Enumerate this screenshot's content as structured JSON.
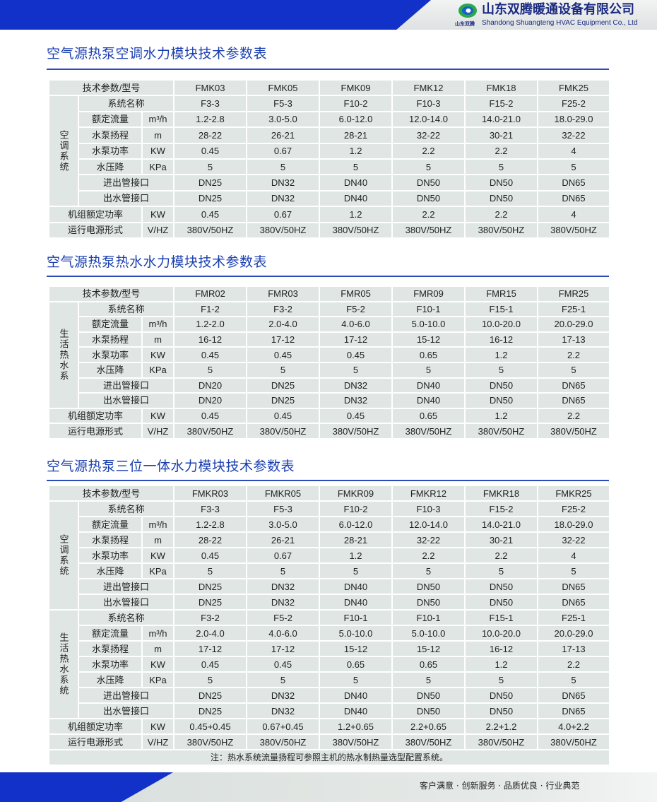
{
  "header": {
    "company_cn": "山东双腾暖通设备有限公司",
    "company_en": "Shandong Shuangteng HVAC Equipment Co., Ltd",
    "logo_text": "山东双腾",
    "brand_color": "#1231c8"
  },
  "tables": [
    {
      "title": "空气源热泵空调水力模块技术参数表",
      "header_label": "技术参数/型号",
      "models": [
        "FMK03",
        "FMK05",
        "FMK09",
        "FMK12",
        "FMK18",
        "FMK25"
      ],
      "groups": [
        {
          "label": "空调系统",
          "rows": [
            {
              "label": "系统名称",
              "unit": "",
              "values": [
                "F3-3",
                "F5-3",
                "F10-2",
                "F10-3",
                "F15-2",
                "F25-2"
              ]
            },
            {
              "label": "额定流量",
              "unit": "m³/h",
              "values": [
                "1.2-2.8",
                "3.0-5.0",
                "6.0-12.0",
                "12.0-14.0",
                "14.0-21.0",
                "18.0-29.0"
              ]
            },
            {
              "label": "水泵扬程",
              "unit": "m",
              "values": [
                "28-22",
                "26-21",
                "28-21",
                "32-22",
                "30-21",
                "32-22"
              ]
            },
            {
              "label": "水泵功率",
              "unit": "KW",
              "values": [
                "0.45",
                "0.67",
                "1.2",
                "2.2",
                "2.2",
                "4"
              ]
            },
            {
              "label": "水压降",
              "unit": "KPa",
              "values": [
                "5",
                "5",
                "5",
                "5",
                "5",
                "5"
              ]
            },
            {
              "label": "进出管接口",
              "unit": "",
              "values": [
                "DN25",
                "DN32",
                "DN40",
                "DN50",
                "DN50",
                "DN65"
              ]
            },
            {
              "label": "出水管接口",
              "unit": "",
              "values": [
                "DN25",
                "DN32",
                "DN40",
                "DN50",
                "DN50",
                "DN65"
              ]
            }
          ]
        }
      ],
      "footer_rows": [
        {
          "label": "机组额定功率",
          "unit": "KW",
          "values": [
            "0.45",
            "0.67",
            "1.2",
            "2.2",
            "2.2",
            "4"
          ]
        },
        {
          "label": "运行电源形式",
          "unit": "V/HZ",
          "values": [
            "380V/50HZ",
            "380V/50HZ",
            "380V/50HZ",
            "380V/50HZ",
            "380V/50HZ",
            "380V/50HZ"
          ]
        }
      ]
    },
    {
      "title": "空气源热泵热水水力模块技术参数表",
      "header_label": "技术参数/型号",
      "models": [
        "FMR02",
        "FMR03",
        "FMR05",
        "FMR09",
        "FMR15",
        "FMR25"
      ],
      "groups": [
        {
          "label": "生活热水系",
          "rows": [
            {
              "label": "系统名称",
              "unit": "",
              "values": [
                "F1-2",
                "F3-2",
                "F5-2",
                "F10-1",
                "F15-1",
                "F25-1"
              ]
            },
            {
              "label": "额定流量",
              "unit": "m³/h",
              "values": [
                "1.2-2.0",
                "2.0-4.0",
                "4.0-6.0",
                "5.0-10.0",
                "10.0-20.0",
                "20.0-29.0"
              ]
            },
            {
              "label": "水泵扬程",
              "unit": "m",
              "values": [
                "16-12",
                "17-12",
                "17-12",
                "15-12",
                "16-12",
                "17-13"
              ]
            },
            {
              "label": "水泵功率",
              "unit": "KW",
              "values": [
                "0.45",
                "0.45",
                "0.45",
                "0.65",
                "1.2",
                "2.2"
              ]
            },
            {
              "label": "水压降",
              "unit": "KPa",
              "values": [
                "5",
                "5",
                "5",
                "5",
                "5",
                "5"
              ]
            },
            {
              "label": "进出管接口",
              "unit": "",
              "values": [
                "DN20",
                "DN25",
                "DN32",
                "DN40",
                "DN50",
                "DN65"
              ]
            },
            {
              "label": "出水管接口",
              "unit": "",
              "values": [
                "DN20",
                "DN25",
                "DN32",
                "DN40",
                "DN50",
                "DN65"
              ]
            }
          ]
        }
      ],
      "footer_rows": [
        {
          "label": "机组额定功率",
          "unit": "KW",
          "values": [
            "0.45",
            "0.45",
            "0.45",
            "0.65",
            "1.2",
            "2.2"
          ]
        },
        {
          "label": "运行电源形式",
          "unit": "V/HZ",
          "values": [
            "380V/50HZ",
            "380V/50HZ",
            "380V/50HZ",
            "380V/50HZ",
            "380V/50HZ",
            "380V/50HZ"
          ]
        }
      ]
    },
    {
      "title": "空气源热泵三位一体水力模块技术参数表",
      "header_label": "技术参数/型号",
      "models": [
        "FMKR03",
        "FMKR05",
        "FMKR09",
        "FMKR12",
        "FMKR18",
        "FMKR25"
      ],
      "groups": [
        {
          "label": "空调系统",
          "rows": [
            {
              "label": "系统名称",
              "unit": "",
              "values": [
                "F3-3",
                "F5-3",
                "F10-2",
                "F10-3",
                "F15-2",
                "F25-2"
              ]
            },
            {
              "label": "额定流量",
              "unit": "m³/h",
              "values": [
                "1.2-2.8",
                "3.0-5.0",
                "6.0-12.0",
                "12.0-14.0",
                "14.0-21.0",
                "18.0-29.0"
              ]
            },
            {
              "label": "水泵扬程",
              "unit": "m",
              "values": [
                "28-22",
                "26-21",
                "28-21",
                "32-22",
                "30-21",
                "32-22"
              ]
            },
            {
              "label": "水泵功率",
              "unit": "KW",
              "values": [
                "0.45",
                "0.67",
                "1.2",
                "2.2",
                "2.2",
                "4"
              ]
            },
            {
              "label": "水压降",
              "unit": "KPa",
              "values": [
                "5",
                "5",
                "5",
                "5",
                "5",
                "5"
              ]
            },
            {
              "label": "进出管接口",
              "unit": "",
              "values": [
                "DN25",
                "DN32",
                "DN40",
                "DN50",
                "DN50",
                "DN65"
              ]
            },
            {
              "label": "出水管接口",
              "unit": "",
              "values": [
                "DN25",
                "DN32",
                "DN40",
                "DN50",
                "DN50",
                "DN65"
              ]
            }
          ]
        },
        {
          "label": "生活热水系统",
          "rows": [
            {
              "label": "系统名称",
              "unit": "",
              "values": [
                "F3-2",
                "F5-2",
                "F10-1",
                "F10-1",
                "F15-1",
                "F25-1"
              ]
            },
            {
              "label": "额定流量",
              "unit": "m³/h",
              "values": [
                "2.0-4.0",
                "4.0-6.0",
                "5.0-10.0",
                "5.0-10.0",
                "10.0-20.0",
                "20.0-29.0"
              ]
            },
            {
              "label": "水泵扬程",
              "unit": "m",
              "values": [
                "17-12",
                "17-12",
                "15-12",
                "15-12",
                "16-12",
                "17-13"
              ]
            },
            {
              "label": "水泵功率",
              "unit": "KW",
              "values": [
                "0.45",
                "0.45",
                "0.65",
                "0.65",
                "1.2",
                "2.2"
              ]
            },
            {
              "label": "水压降",
              "unit": "KPa",
              "values": [
                "5",
                "5",
                "5",
                "5",
                "5",
                "5"
              ]
            },
            {
              "label": "进出管接口",
              "unit": "",
              "values": [
                "DN25",
                "DN32",
                "DN40",
                "DN50",
                "DN50",
                "DN65"
              ]
            },
            {
              "label": "出水管接口",
              "unit": "",
              "values": [
                "DN25",
                "DN32",
                "DN40",
                "DN50",
                "DN50",
                "DN65"
              ]
            }
          ]
        }
      ],
      "footer_rows": [
        {
          "label": "机组额定功率",
          "unit": "KW",
          "values": [
            "0.45+0.45",
            "0.67+0.45",
            "1.2+0.65",
            "2.2+0.65",
            "2.2+1.2",
            "4.0+2.2"
          ]
        },
        {
          "label": "运行电源形式",
          "unit": "V/HZ",
          "values": [
            "380V/50HZ",
            "380V/50HZ",
            "380V/50HZ",
            "380V/50HZ",
            "380V/50HZ",
            "380V/50HZ"
          ]
        }
      ],
      "note": "注：热水系统流量扬程可参照主机的热水制热量选型配置系统。"
    }
  ],
  "footer": {
    "slogan": "客户满意 · 创新服务 · 品质优良 · 行业典范"
  }
}
